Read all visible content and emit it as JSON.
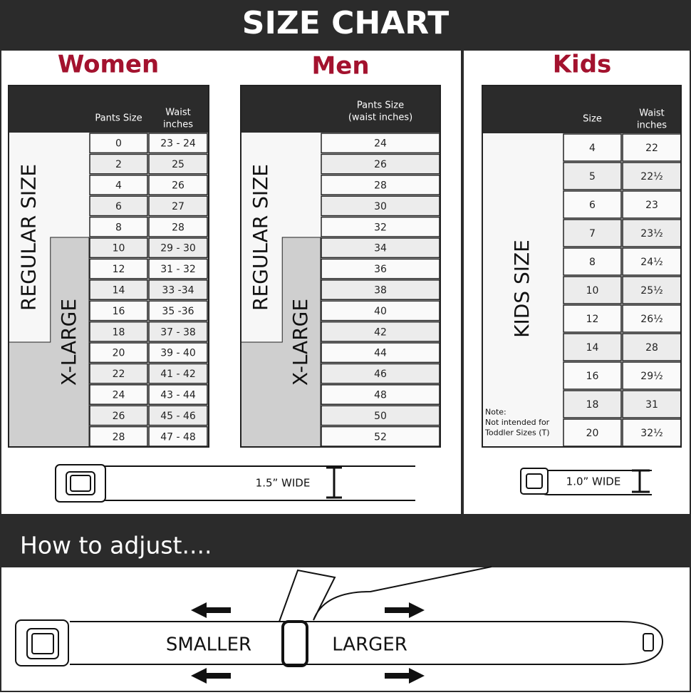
{
  "header": {
    "title": "SIZE CHART"
  },
  "women": {
    "title": "Women",
    "headers": [
      "Pants Size",
      "Waist\ninches"
    ],
    "regular_label": "REGULAR SIZE",
    "xlarge_label": "X-LARGE",
    "rows": [
      [
        "0",
        "23 - 24"
      ],
      [
        "2",
        "25"
      ],
      [
        "4",
        "26"
      ],
      [
        "6",
        "27"
      ],
      [
        "8",
        "28"
      ],
      [
        "10",
        "29 - 30"
      ],
      [
        "12",
        "31 - 32"
      ],
      [
        "14",
        "33 -34"
      ],
      [
        "16",
        "35 -36"
      ],
      [
        "18",
        "37 - 38"
      ],
      [
        "20",
        "39 - 40"
      ],
      [
        "22",
        "41 - 42"
      ],
      [
        "24",
        "43 - 44"
      ],
      [
        "26",
        "45 - 46"
      ],
      [
        "28",
        "47 - 48"
      ]
    ]
  },
  "men": {
    "title": "Men",
    "headers": [
      "Pants Size\n(waist inches)"
    ],
    "regular_label": "REGULAR SIZE",
    "xlarge_label": "X-LARGE",
    "rows": [
      [
        "24"
      ],
      [
        "26"
      ],
      [
        "28"
      ],
      [
        "30"
      ],
      [
        "32"
      ],
      [
        "34"
      ],
      [
        "36"
      ],
      [
        "38"
      ],
      [
        "40"
      ],
      [
        "42"
      ],
      [
        "44"
      ],
      [
        "46"
      ],
      [
        "48"
      ],
      [
        "50"
      ],
      [
        "52"
      ]
    ]
  },
  "kids": {
    "title": "Kids",
    "headers": [
      "Size",
      "Waist\ninches"
    ],
    "label": "KIDS SIZE",
    "note": "Note:\nNot intended for\nToddler Sizes (T)",
    "rows": [
      [
        "4",
        "22"
      ],
      [
        "5",
        "22½"
      ],
      [
        "6",
        "23"
      ],
      [
        "7",
        "23½"
      ],
      [
        "8",
        "24½"
      ],
      [
        "10",
        "25½"
      ],
      [
        "12",
        "26½"
      ],
      [
        "14",
        "28"
      ],
      [
        "16",
        "29½"
      ],
      [
        "18",
        "31"
      ],
      [
        "20",
        "32½"
      ]
    ]
  },
  "belt_widths": [
    "1.5” WIDE",
    "1.0” WIDE"
  ],
  "adjust": {
    "title": "How to adjust....",
    "smaller": "SMALLER",
    "larger": "LARGER"
  }
}
